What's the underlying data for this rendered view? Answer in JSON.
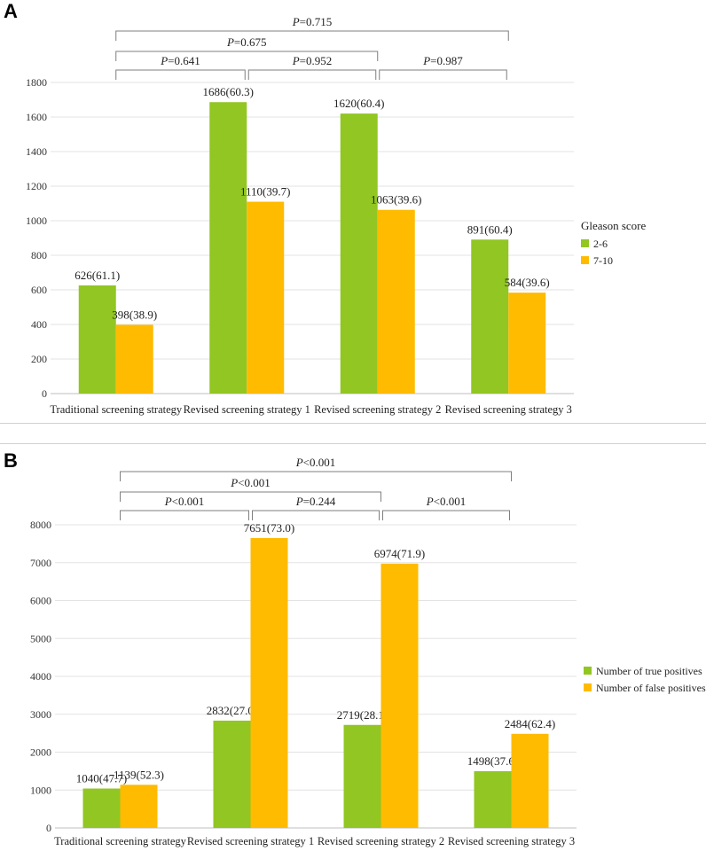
{
  "chart_data": [
    {
      "panel": "A",
      "type": "bar",
      "categories": [
        "Traditional screening strategy",
        "Revised screening strategy 1",
        "Revised screening strategy 2",
        "Revised screening strategy 3"
      ],
      "series": [
        {
          "name": "2-6",
          "values": [
            626,
            1686,
            1620,
            891
          ],
          "labels": [
            "626(61.1)",
            "1686(60.3)",
            "1620(60.4)",
            "891(60.4)"
          ]
        },
        {
          "name": "7-10",
          "values": [
            398,
            1110,
            1063,
            584
          ],
          "labels": [
            "398(38.9)",
            "1110(39.7)",
            "1063(39.6)",
            "584(39.6)"
          ]
        }
      ],
      "yticks": [
        "0",
        "200",
        "400",
        "600",
        "800",
        "1000",
        "1200",
        "1400",
        "1600",
        "1800"
      ],
      "ylim": [
        0,
        1800
      ],
      "legend_title": "Gleason score",
      "legend_position": "right",
      "comparisons": [
        {
          "from": 0,
          "to": 1,
          "level": 0,
          "label": "=0.641"
        },
        {
          "from": 1,
          "to": 2,
          "level": 0,
          "label": "=0.952"
        },
        {
          "from": 2,
          "to": 3,
          "level": 0,
          "label": "=0.987"
        },
        {
          "from": 0,
          "to": 2,
          "level": 1,
          "label": "=0.675"
        },
        {
          "from": 0,
          "to": 3,
          "level": 2,
          "label": "=0.715"
        }
      ],
      "colors": [
        "#92c622",
        "#ffbb00"
      ]
    },
    {
      "panel": "B",
      "type": "bar",
      "categories": [
        "Traditional screening strategy",
        "Revised screening strategy 1",
        "Revised screening strategy 2",
        "Revised screening strategy 3"
      ],
      "series": [
        {
          "name": "Number of true positives",
          "values": [
            1040,
            2832,
            2719,
            1498
          ],
          "labels": [
            "1040(47.7)",
            "2832(27.0)",
            "2719(28.1)",
            "1498(37.6)"
          ]
        },
        {
          "name": "Number of false positives",
          "values": [
            1139,
            7651,
            6974,
            2484
          ],
          "labels": [
            "1139(52.3)",
            "7651(73.0)",
            "6974(71.9)",
            "2484(62.4)"
          ]
        }
      ],
      "yticks": [
        "0",
        "1000",
        "2000",
        "3000",
        "4000",
        "5000",
        "6000",
        "7000",
        "8000"
      ],
      "ylim": [
        0,
        8000
      ],
      "legend_title": "",
      "legend_position": "right",
      "comparisons": [
        {
          "from": 0,
          "to": 1,
          "level": 0,
          "label": "<0.001"
        },
        {
          "from": 1,
          "to": 2,
          "level": 0,
          "label": "=0.244"
        },
        {
          "from": 2,
          "to": 3,
          "level": 0,
          "label": "<0.001"
        },
        {
          "from": 0,
          "to": 2,
          "level": 1,
          "label": "<0.001"
        },
        {
          "from": 0,
          "to": 3,
          "level": 2,
          "label": "<0.001"
        }
      ],
      "colors": [
        "#92c622",
        "#ffbb00"
      ]
    }
  ],
  "panels": {
    "a_letter": "A",
    "b_letter": "B",
    "p_symbol": "P"
  }
}
